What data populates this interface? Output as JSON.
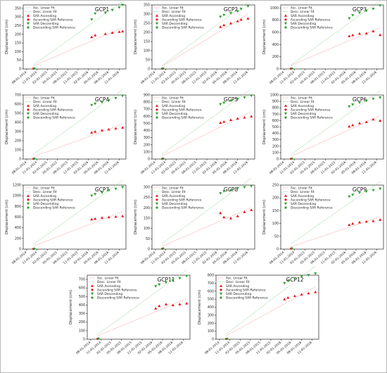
{
  "figure": {
    "legend_labels": {
      "asc_fit": "Asc. Linear Fit",
      "desc_fit": "Desc. Linear Fit",
      "sar_asc": "SAR Ascending",
      "asc_ref": "Ascending SAR Reference",
      "sar_desc": "SAR Descending",
      "desc_ref": "Descending SAR Reference"
    },
    "ylabel": "Displacement (cm)",
    "x_tick_labels": [
      "08-01-2014",
      "11-01-2014",
      "02-01-2015",
      "05-01-2015",
      "08-01-2015",
      "11-01-2015",
      "02-01-2016",
      "05-01-2016",
      "08-01-2016",
      "11-01-2016"
    ],
    "colors": {
      "ascending": "#e8141c",
      "descending": "#2ca02c",
      "asc_fit": "#f08080",
      "desc_fit": "#7fc97f",
      "frame": "#222222"
    }
  },
  "chart_data": [
    {
      "type": "scatter",
      "title": "GCP1",
      "ylim": [
        0,
        370
      ],
      "yticks": [
        0,
        50,
        100,
        150,
        200,
        250,
        300,
        350
      ],
      "x": [
        "2014-10-01",
        "2016-03-01",
        "2016-04-01",
        "2016-07-01",
        "2016-09-01",
        "2016-11-01",
        "2016-12-01"
      ],
      "series": [
        {
          "name": "SAR Ascending",
          "values": [
            2,
            185,
            195,
            203,
            210,
            215,
            218
          ]
        },
        {
          "name": "SAR Descending",
          "values": [
            3,
            285,
            320,
            325,
            340,
            355,
            370
          ]
        }
      ]
    },
    {
      "type": "scatter",
      "title": "GCP2",
      "ylim": [
        0,
        350
      ],
      "yticks": [
        0,
        50,
        100,
        150,
        200,
        250,
        300,
        350
      ],
      "x": [
        "2014-10-01",
        "2016-03-01",
        "2016-04-01",
        "2016-06-01",
        "2016-08-01",
        "2016-09-01",
        "2016-11-01"
      ],
      "series": [
        {
          "name": "SAR Ascending",
          "values": [
            2,
            230,
            240,
            250,
            262,
            270,
            276
          ]
        },
        {
          "name": "SAR Descending",
          "values": [
            3,
            285,
            295,
            305,
            315,
            328,
            343
          ]
        }
      ]
    },
    {
      "type": "scatter",
      "title": "GCP3",
      "ylim": [
        0,
        1050
      ],
      "yticks": [
        0,
        200,
        400,
        600,
        800,
        1000
      ],
      "x": [
        "2014-10-01",
        "2016-03-01",
        "2016-04-01",
        "2016-06-01",
        "2016-08-01",
        "2016-10-01",
        "2016-12-01"
      ],
      "series": [
        {
          "name": "SAR Ascending",
          "values": [
            5,
            540,
            555,
            580,
            585,
            620,
            560
          ]
        },
        {
          "name": "SAR Descending",
          "values": [
            8,
            830,
            880,
            920,
            955,
            985,
            1040
          ]
        }
      ]
    },
    {
      "type": "scatter",
      "title": "GCP4",
      "ylim": [
        0,
        700
      ],
      "yticks": [
        0,
        100,
        200,
        300,
        400,
        500,
        600,
        700
      ],
      "x": [
        "2014-10-01",
        "2016-03-01",
        "2016-04-01",
        "2016-06-01",
        "2016-08-01",
        "2016-10-01",
        "2016-12-01"
      ],
      "series": [
        {
          "name": "SAR Ascending",
          "values": [
            3,
            290,
            300,
            315,
            325,
            335,
            345
          ]
        },
        {
          "name": "SAR Descending",
          "values": [
            5,
            590,
            605,
            620,
            640,
            665,
            690
          ]
        }
      ]
    },
    {
      "type": "scatter",
      "title": "GCP5",
      "ylim": [
        0,
        900
      ],
      "yticks": [
        0,
        100,
        200,
        300,
        400,
        500,
        600,
        700,
        800,
        900
      ],
      "x": [
        "2014-10-01",
        "2016-03-01",
        "2016-04-01",
        "2016-06-01",
        "2016-08-01",
        "2016-10-01",
        "2016-12-01"
      ],
      "series": [
        {
          "name": "SAR Ascending",
          "values": [
            4,
            510,
            525,
            550,
            570,
            585,
            600
          ]
        },
        {
          "name": "SAR Descending",
          "values": [
            6,
            770,
            790,
            820,
            845,
            865,
            890
          ]
        }
      ]
    },
    {
      "type": "scatter",
      "title": "GCP6",
      "ylim": [
        0,
        1000
      ],
      "yticks": [
        0,
        100,
        200,
        300,
        400,
        500,
        600,
        700,
        800,
        900,
        1000
      ],
      "x": [
        "2014-10-01",
        "2016-03-01",
        "2016-04-01",
        "2016-06-01",
        "2016-08-01",
        "2016-10-01",
        "2016-12-01"
      ],
      "series": [
        {
          "name": "SAR Ascending",
          "values": [
            4,
            510,
            530,
            560,
            580,
            620,
            600
          ]
        },
        {
          "name": "SAR Descending",
          "values": [
            6,
            820,
            850,
            880,
            910,
            940,
            960
          ]
        }
      ]
    },
    {
      "type": "scatter",
      "title": "GCP7",
      "ylim": [
        0,
        1200
      ],
      "yticks": [
        0,
        200,
        400,
        600,
        800,
        1000,
        1200
      ],
      "x": [
        "2014-10-01",
        "2016-03-01",
        "2016-04-01",
        "2016-06-01",
        "2016-08-01",
        "2016-10-01",
        "2016-12-01"
      ],
      "series": [
        {
          "name": "SAR Ascending",
          "values": [
            5,
            560,
            570,
            590,
            600,
            610,
            620
          ]
        },
        {
          "name": "SAR Descending",
          "values": [
            8,
            1000,
            1030,
            1060,
            1100,
            1130,
            1160
          ]
        }
      ]
    },
    {
      "type": "scatter",
      "title": "GCP8",
      "ylim": [
        0,
        310
      ],
      "yticks": [
        0,
        50,
        100,
        150,
        200,
        250,
        300
      ],
      "x": [
        "2014-10-01",
        "2016-03-01",
        "2016-04-01",
        "2016-06-01",
        "2016-08-01",
        "2016-10-01",
        "2016-12-01"
      ],
      "series": [
        {
          "name": "SAR Ascending",
          "values": [
            2,
            175,
            155,
            150,
            160,
            180,
            190
          ]
        },
        {
          "name": "SAR Descending",
          "values": [
            3,
            270,
            280,
            285,
            295,
            300,
            305
          ]
        }
      ]
    },
    {
      "type": "scatter",
      "title": "GCP9",
      "ylim": [
        0,
        250
      ],
      "yticks": [
        0,
        50,
        100,
        150,
        200,
        250
      ],
      "x": [
        "2014-10-01",
        "2016-03-01",
        "2016-04-01",
        "2016-06-01",
        "2016-08-01",
        "2016-10-01",
        "2016-12-01"
      ],
      "series": [
        {
          "name": "SAR Ascending",
          "values": [
            2,
            95,
            100,
            105,
            108,
            110,
            115
          ]
        },
        {
          "name": "SAR Descending",
          "values": [
            3,
            205,
            212,
            220,
            225,
            230,
            236
          ]
        }
      ]
    },
    {
      "type": "scatter",
      "title": "GCP11",
      "ylim": [
        0,
        750
      ],
      "yticks": [
        0,
        100,
        200,
        300,
        400,
        500,
        600,
        700
      ],
      "x": [
        "2014-10-01",
        "2016-03-01",
        "2016-04-01",
        "2016-06-01",
        "2016-08-01",
        "2016-10-01",
        "2016-12-01"
      ],
      "series": [
        {
          "name": "SAR Ascending",
          "values": [
            5,
            360,
            390,
            410,
            400,
            410,
            420
          ]
        },
        {
          "name": "SAR Descending",
          "values": [
            8,
            620,
            640,
            665,
            690,
            715,
            740
          ]
        }
      ]
    },
    {
      "type": "scatter",
      "title": "GCP12",
      "ylim": [
        0,
        800
      ],
      "yticks": [
        0,
        100,
        200,
        300,
        400,
        500,
        600,
        700,
        800
      ],
      "x": [
        "2014-10-01",
        "2016-03-01",
        "2016-04-01",
        "2016-06-01",
        "2016-08-01",
        "2016-10-01",
        "2016-12-01"
      ],
      "series": [
        {
          "name": "SAR Ascending",
          "values": [
            4,
            500,
            520,
            540,
            560,
            575,
            590
          ]
        },
        {
          "name": "SAR Descending",
          "values": [
            6,
            700,
            730,
            760,
            785,
            800,
            820
          ]
        }
      ]
    }
  ]
}
